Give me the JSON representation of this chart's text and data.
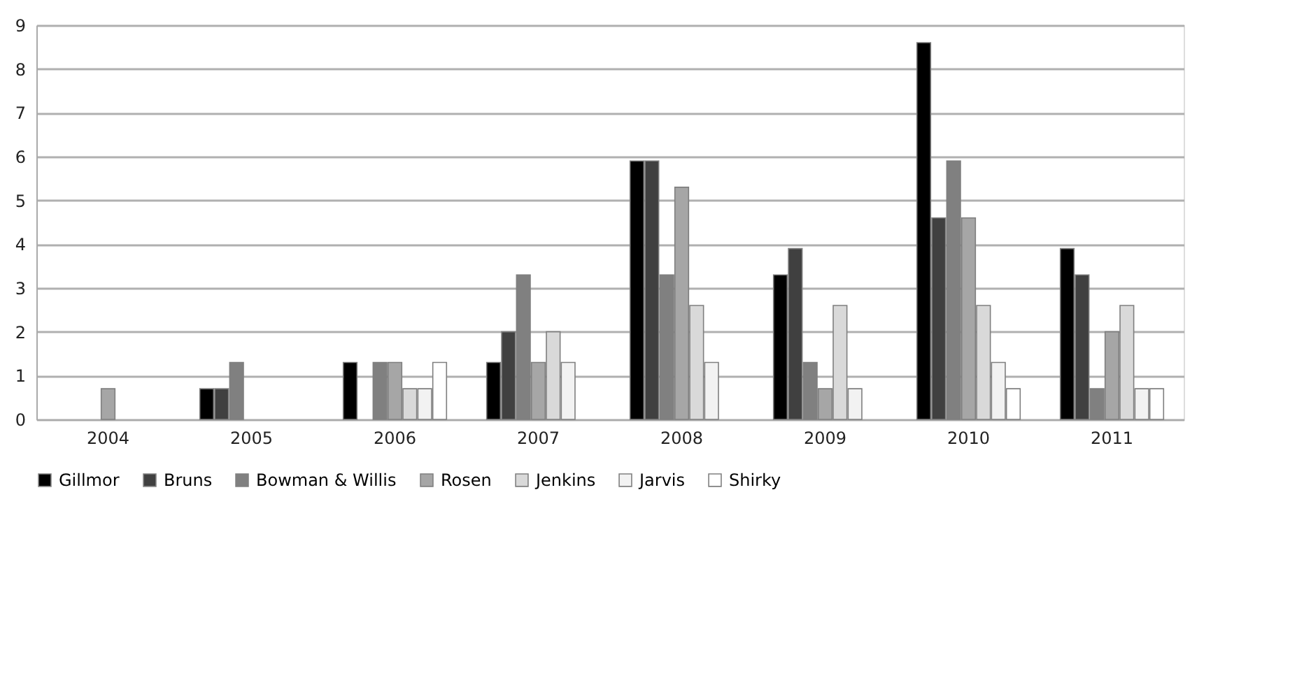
{
  "chart_data": {
    "type": "bar",
    "categories": [
      "2004",
      "2005",
      "2006",
      "2007",
      "2008",
      "2009",
      "2010",
      "2011"
    ],
    "series": [
      {
        "name": "Gillmor",
        "color": "#000000",
        "values": [
          null,
          0.7,
          1.3,
          1.3,
          5.9,
          3.3,
          8.6,
          3.9
        ]
      },
      {
        "name": "Bruns",
        "color": "#404040",
        "values": [
          null,
          0.7,
          null,
          2.0,
          5.9,
          3.9,
          4.6,
          3.3
        ]
      },
      {
        "name": "Bowman & Willis",
        "color": "#808080",
        "values": [
          null,
          1.3,
          1.3,
          3.3,
          3.3,
          1.3,
          5.9,
          0.7
        ]
      },
      {
        "name": "Rosen",
        "color": "#a6a6a6",
        "values": [
          0.7,
          null,
          1.3,
          1.3,
          5.3,
          0.7,
          4.6,
          2.0
        ]
      },
      {
        "name": "Jenkins",
        "color": "#d9d9d9",
        "values": [
          null,
          null,
          0.7,
          2.0,
          2.6,
          2.6,
          2.6,
          2.6
        ]
      },
      {
        "name": "Jarvis",
        "color": "#f2f2f2",
        "values": [
          null,
          null,
          0.7,
          1.3,
          1.3,
          0.7,
          1.3,
          0.7
        ]
      },
      {
        "name": "Shirky",
        "color": "#ffffff",
        "values": [
          null,
          null,
          1.3,
          null,
          null,
          null,
          0.7,
          0.7
        ]
      }
    ],
    "ylim": [
      0,
      9
    ],
    "yticks": [
      0,
      1,
      2,
      3,
      4,
      5,
      6,
      7,
      8,
      9
    ],
    "grid": "y",
    "legend": "bottom"
  }
}
